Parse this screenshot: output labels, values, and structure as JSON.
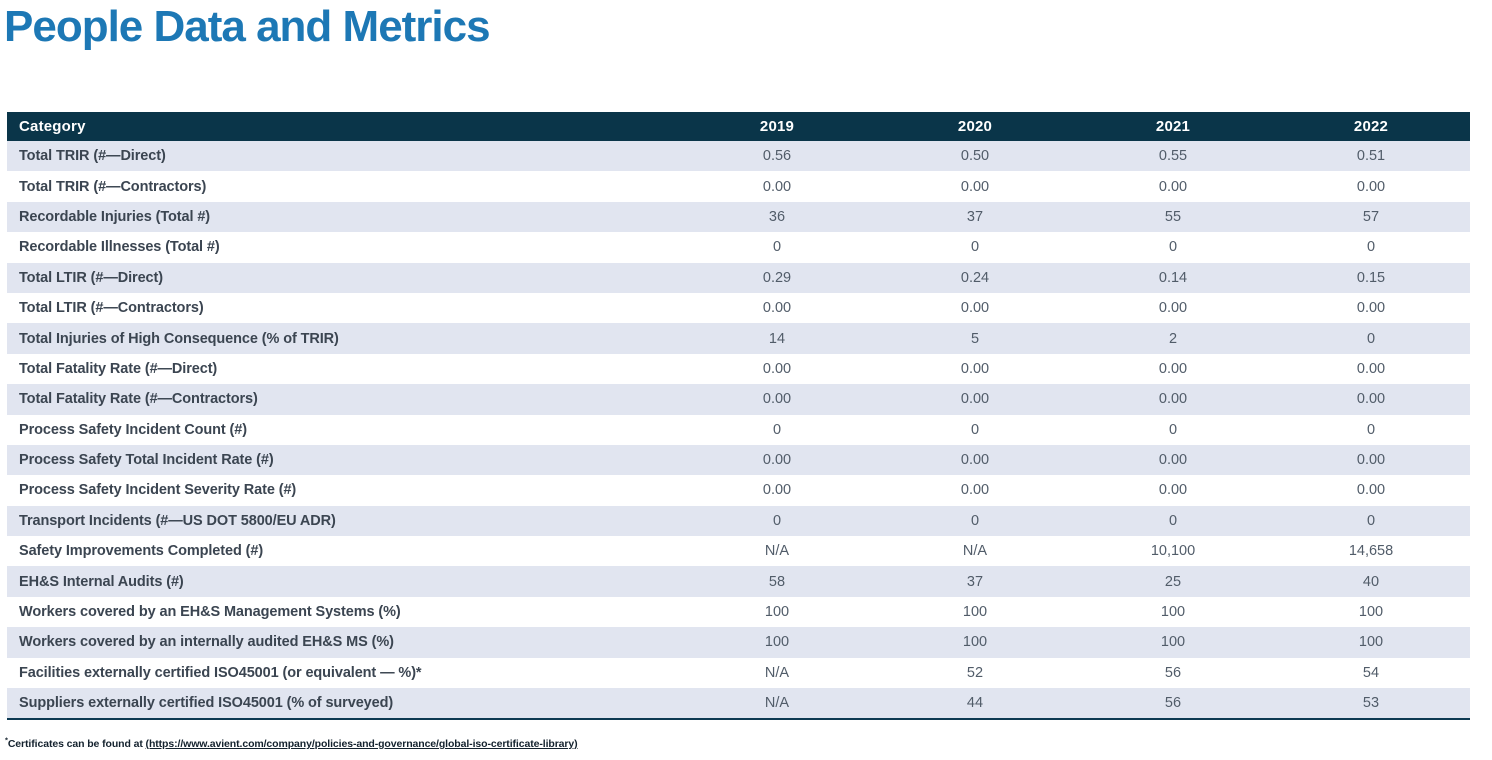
{
  "page": {
    "title": "People Data and Metrics"
  },
  "table": {
    "columns": [
      "Category",
      "2019",
      "2020",
      "2021",
      "2022"
    ],
    "rows": [
      {
        "category": "Total TRIR (#—Direct)",
        "values": [
          "0.56",
          "0.50",
          "0.55",
          "0.51"
        ]
      },
      {
        "category": "Total TRIR (#—Contractors)",
        "values": [
          "0.00",
          "0.00",
          "0.00",
          "0.00"
        ]
      },
      {
        "category": "Recordable Injuries (Total #)",
        "values": [
          "36",
          "37",
          "55",
          "57"
        ]
      },
      {
        "category": "Recordable Illnesses (Total #)",
        "values": [
          "0",
          "0",
          "0",
          "0"
        ]
      },
      {
        "category": "Total LTIR (#—Direct)",
        "values": [
          "0.29",
          "0.24",
          "0.14",
          "0.15"
        ]
      },
      {
        "category": "Total LTIR (#—Contractors)",
        "values": [
          "0.00",
          "0.00",
          "0.00",
          "0.00"
        ]
      },
      {
        "category": "Total Injuries of High Consequence (% of TRIR)",
        "values": [
          "14",
          "5",
          "2",
          "0"
        ]
      },
      {
        "category": "Total Fatality Rate (#—Direct)",
        "values": [
          "0.00",
          "0.00",
          "0.00",
          "0.00"
        ]
      },
      {
        "category": "Total Fatality Rate (#—Contractors)",
        "values": [
          "0.00",
          "0.00",
          "0.00",
          "0.00"
        ]
      },
      {
        "category": "Process Safety Incident Count (#)",
        "values": [
          "0",
          "0",
          "0",
          "0"
        ]
      },
      {
        "category": "Process Safety Total Incident Rate (#)",
        "values": [
          "0.00",
          "0.00",
          "0.00",
          "0.00"
        ]
      },
      {
        "category": "Process Safety Incident Severity Rate (#)",
        "values": [
          "0.00",
          "0.00",
          "0.00",
          "0.00"
        ]
      },
      {
        "category": "Transport Incidents (#—US DOT 5800/EU ADR)",
        "values": [
          "0",
          "0",
          "0",
          "0"
        ]
      },
      {
        "category": "Safety Improvements Completed (#)",
        "values": [
          "N/A",
          "N/A",
          "10,100",
          "14,658"
        ]
      },
      {
        "category": "EH&S Internal Audits (#)",
        "values": [
          "58",
          "37",
          "25",
          "40"
        ]
      },
      {
        "category": "Workers covered by an EH&S Management Systems (%)",
        "values": [
          "100",
          "100",
          "100",
          "100"
        ]
      },
      {
        "category": "Workers covered by an internally audited EH&S MS (%)",
        "values": [
          "100",
          "100",
          "100",
          "100"
        ]
      },
      {
        "category": "Facilities externally certified ISO45001 (or equivalent — %)*",
        "values": [
          "N/A",
          "52",
          "56",
          "54"
        ]
      },
      {
        "category": "Suppliers externally certified ISO45001 (% of surveyed)",
        "values": [
          "N/A",
          "44",
          "56",
          "53"
        ]
      }
    ]
  },
  "footnote": {
    "marker": "*",
    "text": "Certificates can be found at ",
    "link": "(https://www.avient.com/company/policies-and-governance/global-iso-certificate-library)"
  },
  "colors": {
    "title_color": "#1d78b5",
    "header_bg": "#0a3549",
    "row_alt_bg": "#e1e5f0",
    "category_text": "#3b4551",
    "value_text": "#515c69",
    "border_bottom": "#0d3a52",
    "footnote_text": "#14222e"
  }
}
